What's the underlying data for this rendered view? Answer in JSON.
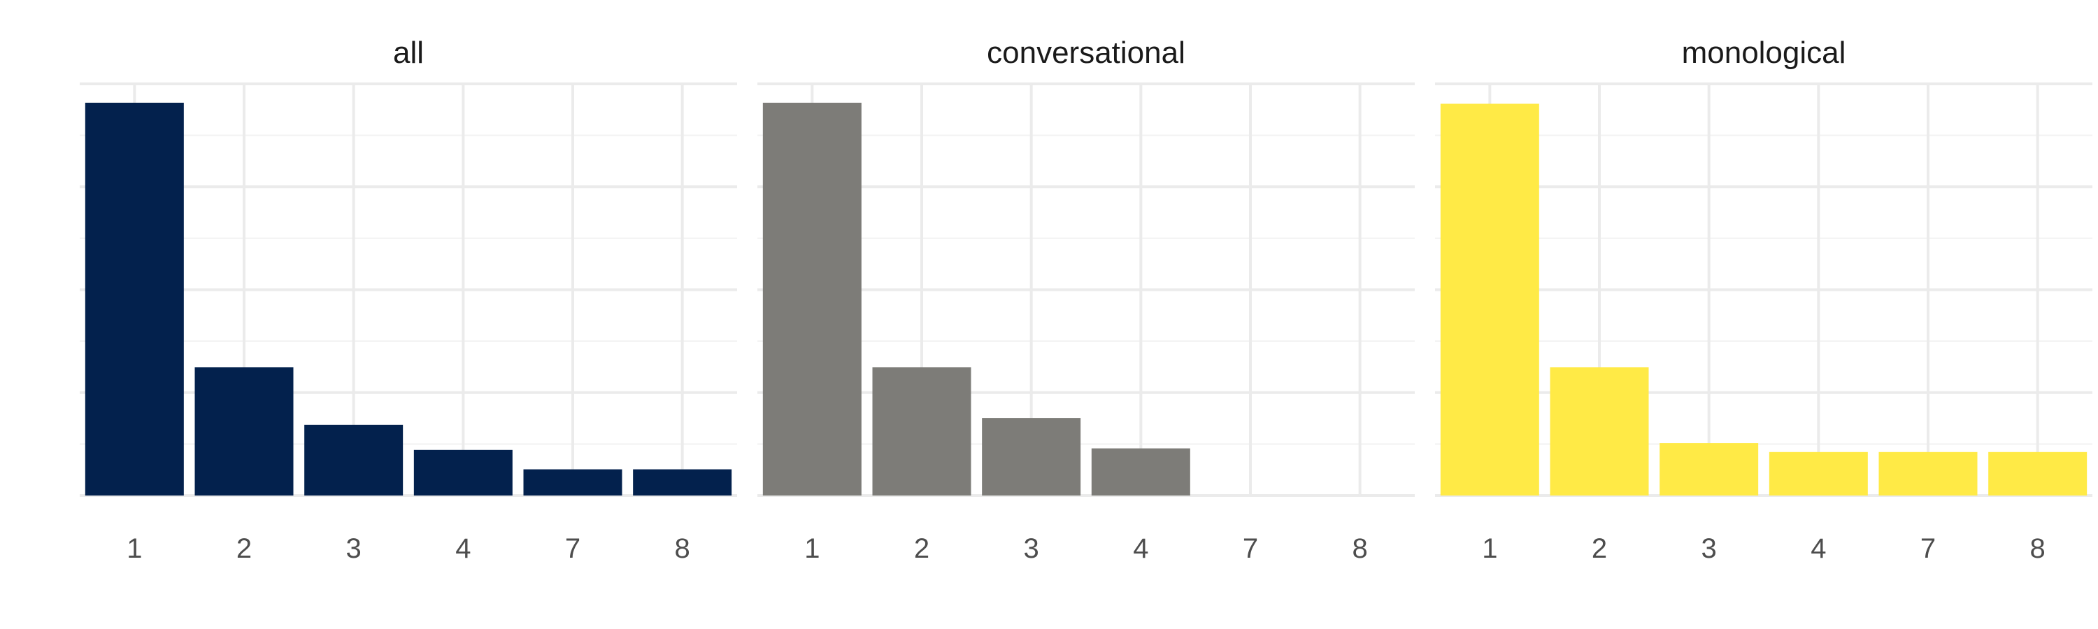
{
  "chart_data": [
    {
      "type": "bar",
      "title": "all",
      "categories": [
        "1",
        "2",
        "3",
        "4",
        "7",
        "8"
      ],
      "values": [
        0.75,
        0.245,
        0.135,
        0.087,
        0.05,
        0.05
      ],
      "ylim": [
        0,
        0.786
      ],
      "color": "#03214d",
      "grid": true,
      "legend": "none"
    },
    {
      "type": "bar",
      "title": "conversational",
      "categories": [
        "1",
        "2",
        "3",
        "4",
        "7",
        "8"
      ],
      "values": [
        0.75,
        0.245,
        0.148,
        0.09,
        0,
        0
      ],
      "ylim": [
        0,
        0.786
      ],
      "color": "#7d7c78",
      "grid": true,
      "legend": "none"
    },
    {
      "type": "bar",
      "title": "monological",
      "categories": [
        "1",
        "2",
        "3",
        "4",
        "7",
        "8"
      ],
      "values": [
        0.748,
        0.245,
        0.1,
        0.083,
        0.083,
        0.083
      ],
      "ylim": [
        0,
        0.786
      ],
      "color": "#ffea46",
      "grid": true,
      "legend": "none"
    }
  ]
}
